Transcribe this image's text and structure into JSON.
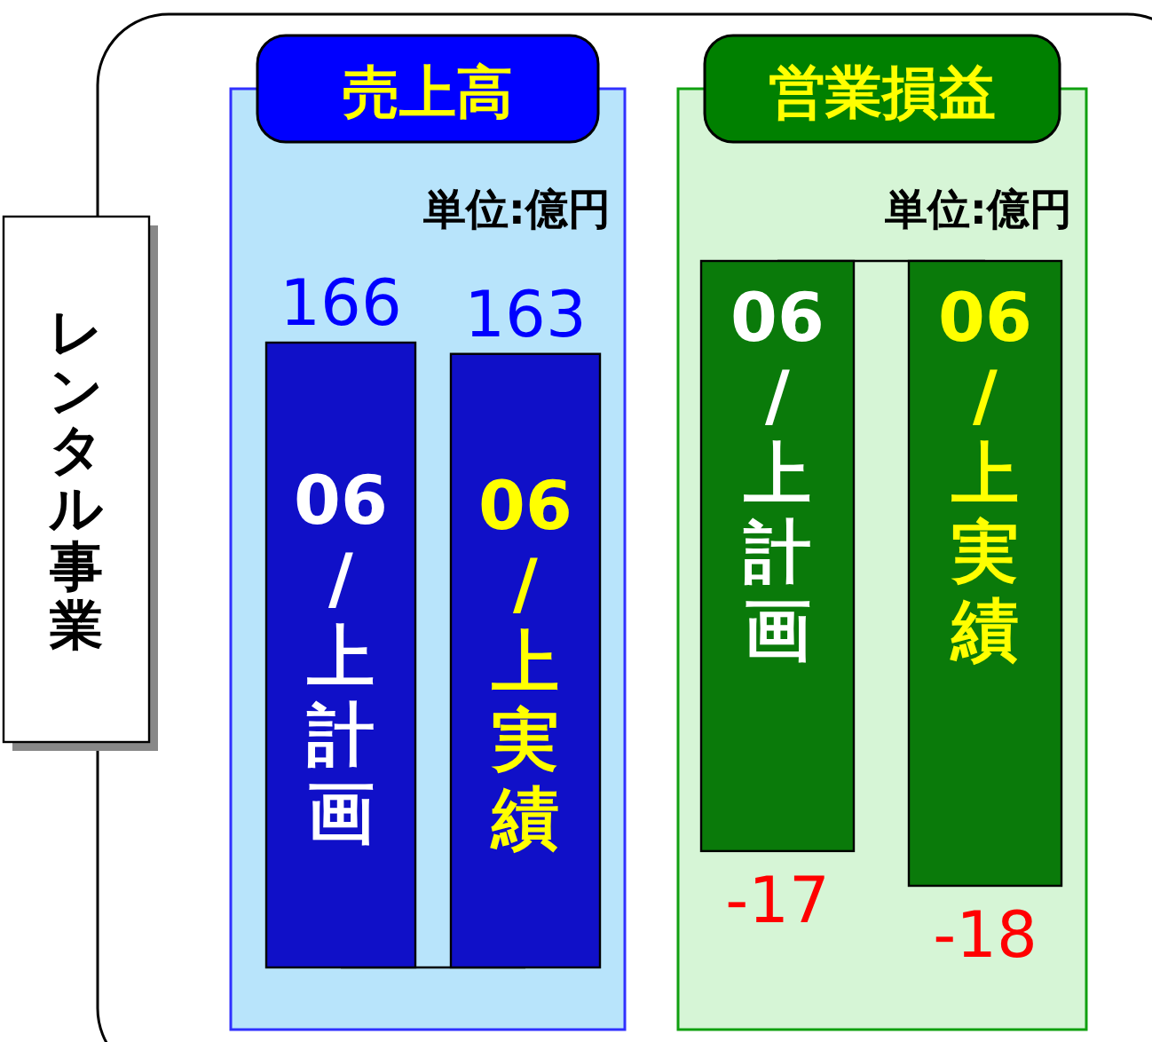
{
  "chart_data": [
    {
      "type": "other",
      "annotations": [
        "レンタル事業"
      ]
    },
    {
      "type": "bar",
      "title": "売上高",
      "subtitle": "単位:億円",
      "categories": [
        "06/上計画",
        "06/上実績"
      ],
      "values": [
        166,
        163
      ],
      "colors": [
        "#1010c8",
        "#1010c8"
      ],
      "data_labels": true
    },
    {
      "type": "bar",
      "title": "営業損益",
      "subtitle": "単位:億円",
      "categories": [
        "06/上計画",
        "06/上実績"
      ],
      "values": [
        -17,
        -18
      ],
      "colors": [
        "#0a7a0a",
        "#0a7a0a"
      ],
      "data_labels": true
    }
  ]
}
